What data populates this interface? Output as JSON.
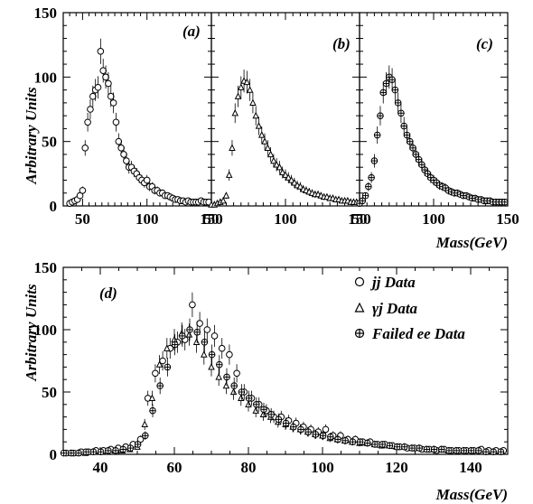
{
  "figure": {
    "y_axis_label": "Arbitrary Units",
    "x_axis_label": "Mass(GeV)"
  },
  "chart_data": [
    {
      "id": "a",
      "type": "scatter",
      "panel_label": "(a)",
      "xlim": [
        35,
        150
      ],
      "ylim": [
        0,
        150
      ],
      "x_ticks": [
        "50",
        "100",
        "150"
      ],
      "y_ticks": [
        "0",
        "50",
        "100",
        "150"
      ],
      "marker": "circle",
      "series": [
        {
          "x": [
            40,
            42,
            44,
            46,
            48,
            50,
            52,
            54,
            56,
            58,
            60,
            62,
            64,
            66,
            68,
            70,
            72,
            74,
            76,
            78,
            80,
            82,
            84,
            86,
            88,
            90,
            92,
            94,
            96,
            98,
            100,
            102,
            104,
            106,
            108,
            110,
            112,
            114,
            116,
            118,
            120,
            122,
            124,
            126,
            128,
            130,
            132,
            134,
            136,
            138,
            140,
            142,
            144,
            146,
            148
          ],
          "y": [
            2,
            3,
            4,
            5,
            8,
            12,
            45,
            65,
            75,
            85,
            90,
            92,
            120,
            105,
            100,
            95,
            85,
            80,
            65,
            50,
            45,
            40,
            35,
            30,
            30,
            27,
            25,
            22,
            20,
            18,
            20,
            15,
            15,
            12,
            12,
            10,
            10,
            8,
            8,
            7,
            6,
            5,
            5,
            4,
            4,
            3,
            4,
            3,
            3,
            3,
            3,
            4,
            3,
            3,
            3
          ]
        }
      ]
    },
    {
      "id": "b",
      "type": "scatter",
      "panel_label": "(b)",
      "xlim": [
        50,
        150
      ],
      "ylim": [
        0,
        150
      ],
      "x_ticks": [
        "50",
        "100",
        "150"
      ],
      "marker": "triangle",
      "series": [
        {
          "x": [
            50,
            52,
            54,
            56,
            58,
            60,
            62,
            64,
            66,
            68,
            70,
            72,
            74,
            76,
            78,
            80,
            82,
            84,
            86,
            88,
            90,
            92,
            94,
            96,
            98,
            100,
            102,
            104,
            106,
            108,
            110,
            112,
            114,
            116,
            118,
            120,
            122,
            124,
            126,
            128,
            130,
            132,
            134,
            136,
            138,
            140,
            142,
            144,
            146,
            148
          ],
          "y": [
            1,
            1,
            2,
            3,
            4,
            8,
            24,
            45,
            72,
            85,
            92,
            97,
            96,
            90,
            80,
            70,
            62,
            55,
            50,
            45,
            40,
            35,
            32,
            30,
            26,
            24,
            22,
            20,
            18,
            16,
            15,
            13,
            12,
            11,
            10,
            9,
            9,
            8,
            7,
            7,
            6,
            6,
            5,
            5,
            4,
            4,
            4,
            3,
            3,
            3
          ]
        }
      ]
    },
    {
      "id": "c",
      "type": "scatter",
      "panel_label": "(c)",
      "xlim": [
        50,
        150
      ],
      "ylim": [
        0,
        150
      ],
      "x_ticks": [
        "50",
        "100",
        "150"
      ],
      "marker": "cross-circle",
      "series": [
        {
          "x": [
            50,
            52,
            54,
            56,
            58,
            60,
            62,
            64,
            66,
            68,
            70,
            72,
            74,
            76,
            78,
            80,
            82,
            84,
            86,
            88,
            90,
            92,
            94,
            96,
            98,
            100,
            102,
            104,
            106,
            108,
            110,
            112,
            114,
            116,
            118,
            120,
            122,
            124,
            126,
            128,
            130,
            132,
            134,
            136,
            138,
            140,
            142,
            144,
            146,
            148
          ],
          "y": [
            2,
            4,
            8,
            15,
            22,
            35,
            55,
            70,
            88,
            95,
            100,
            98,
            90,
            80,
            72,
            62,
            55,
            50,
            45,
            40,
            36,
            32,
            28,
            25,
            22,
            20,
            18,
            16,
            15,
            14,
            12,
            11,
            10,
            10,
            9,
            8,
            8,
            7,
            6,
            6,
            5,
            5,
            4,
            4,
            4,
            3,
            3,
            3,
            3,
            3
          ]
        }
      ]
    },
    {
      "id": "d",
      "type": "scatter",
      "panel_label": "(d)",
      "xlim": [
        30,
        150
      ],
      "ylim": [
        0,
        150
      ],
      "x_ticks": [
        "40",
        "60",
        "80",
        "100",
        "120",
        "140"
      ],
      "y_ticks": [
        "0",
        "50",
        "100",
        "150"
      ],
      "legend_position": "top-right",
      "series": [
        {
          "name": "jj Data",
          "marker": "circle",
          "x": [
            31,
            33,
            35,
            37,
            39,
            41,
            43,
            45,
            47,
            49,
            51,
            53,
            55,
            57,
            59,
            61,
            63,
            65,
            67,
            69,
            71,
            73,
            75,
            77,
            79,
            81,
            83,
            85,
            87,
            89,
            91,
            93,
            95,
            97,
            99,
            101,
            103,
            105,
            107,
            109,
            111,
            113,
            115,
            117,
            119,
            121,
            123,
            125,
            127,
            129,
            131,
            133,
            135,
            137,
            139,
            141,
            143,
            145,
            147,
            149
          ],
          "y": [
            1,
            1,
            2,
            2,
            3,
            3,
            4,
            5,
            6,
            8,
            12,
            45,
            65,
            75,
            85,
            90,
            92,
            120,
            105,
            100,
            95,
            85,
            80,
            65,
            50,
            45,
            40,
            35,
            30,
            30,
            27,
            25,
            22,
            20,
            18,
            20,
            15,
            15,
            12,
            12,
            10,
            10,
            8,
            8,
            7,
            6,
            5,
            5,
            4,
            4,
            3,
            4,
            3,
            3,
            3,
            3,
            4,
            3,
            3,
            3
          ]
        },
        {
          "name": "γj Data",
          "marker": "triangle",
          "x": [
            32,
            34,
            36,
            38,
            40,
            42,
            44,
            46,
            48,
            50,
            52,
            54,
            56,
            58,
            60,
            62,
            64,
            66,
            68,
            70,
            72,
            74,
            76,
            78,
            80,
            82,
            84,
            86,
            88,
            90,
            92,
            94,
            96,
            98,
            100,
            102,
            104,
            106,
            108,
            110,
            112,
            114,
            116,
            118,
            120,
            122,
            124,
            126,
            128,
            130,
            132,
            134,
            136,
            138,
            140,
            142,
            144,
            146,
            148
          ],
          "y": [
            1,
            1,
            1,
            2,
            2,
            2,
            3,
            3,
            4,
            6,
            24,
            45,
            72,
            85,
            92,
            97,
            96,
            90,
            80,
            70,
            62,
            55,
            50,
            45,
            40,
            35,
            32,
            30,
            26,
            24,
            22,
            20,
            18,
            16,
            15,
            13,
            12,
            11,
            10,
            9,
            9,
            8,
            7,
            7,
            6,
            6,
            5,
            5,
            4,
            4,
            4,
            3,
            3,
            3,
            3,
            3,
            2,
            2,
            2
          ]
        },
        {
          "name": "Failed ee Data",
          "marker": "cross-circle",
          "x": [
            30,
            32,
            34,
            36,
            38,
            40,
            42,
            44,
            46,
            48,
            50,
            52,
            54,
            56,
            58,
            60,
            62,
            64,
            66,
            68,
            70,
            72,
            74,
            76,
            78,
            80,
            82,
            84,
            86,
            88,
            90,
            92,
            94,
            96,
            98,
            100,
            102,
            104,
            106,
            108,
            110,
            112,
            114,
            116,
            118,
            120,
            122,
            124,
            126,
            128,
            130,
            132,
            134,
            136,
            138,
            140,
            142,
            144,
            146,
            148
          ],
          "y": [
            1,
            1,
            1,
            2,
            2,
            2,
            3,
            3,
            4,
            5,
            8,
            15,
            35,
            55,
            70,
            88,
            95,
            100,
            98,
            90,
            80,
            72,
            62,
            55,
            50,
            45,
            40,
            36,
            32,
            28,
            25,
            22,
            20,
            18,
            16,
            15,
            14,
            12,
            11,
            10,
            10,
            9,
            8,
            8,
            7,
            6,
            6,
            5,
            5,
            4,
            4,
            4,
            3,
            3,
            3,
            3,
            3,
            2,
            2,
            2
          ]
        }
      ]
    }
  ]
}
